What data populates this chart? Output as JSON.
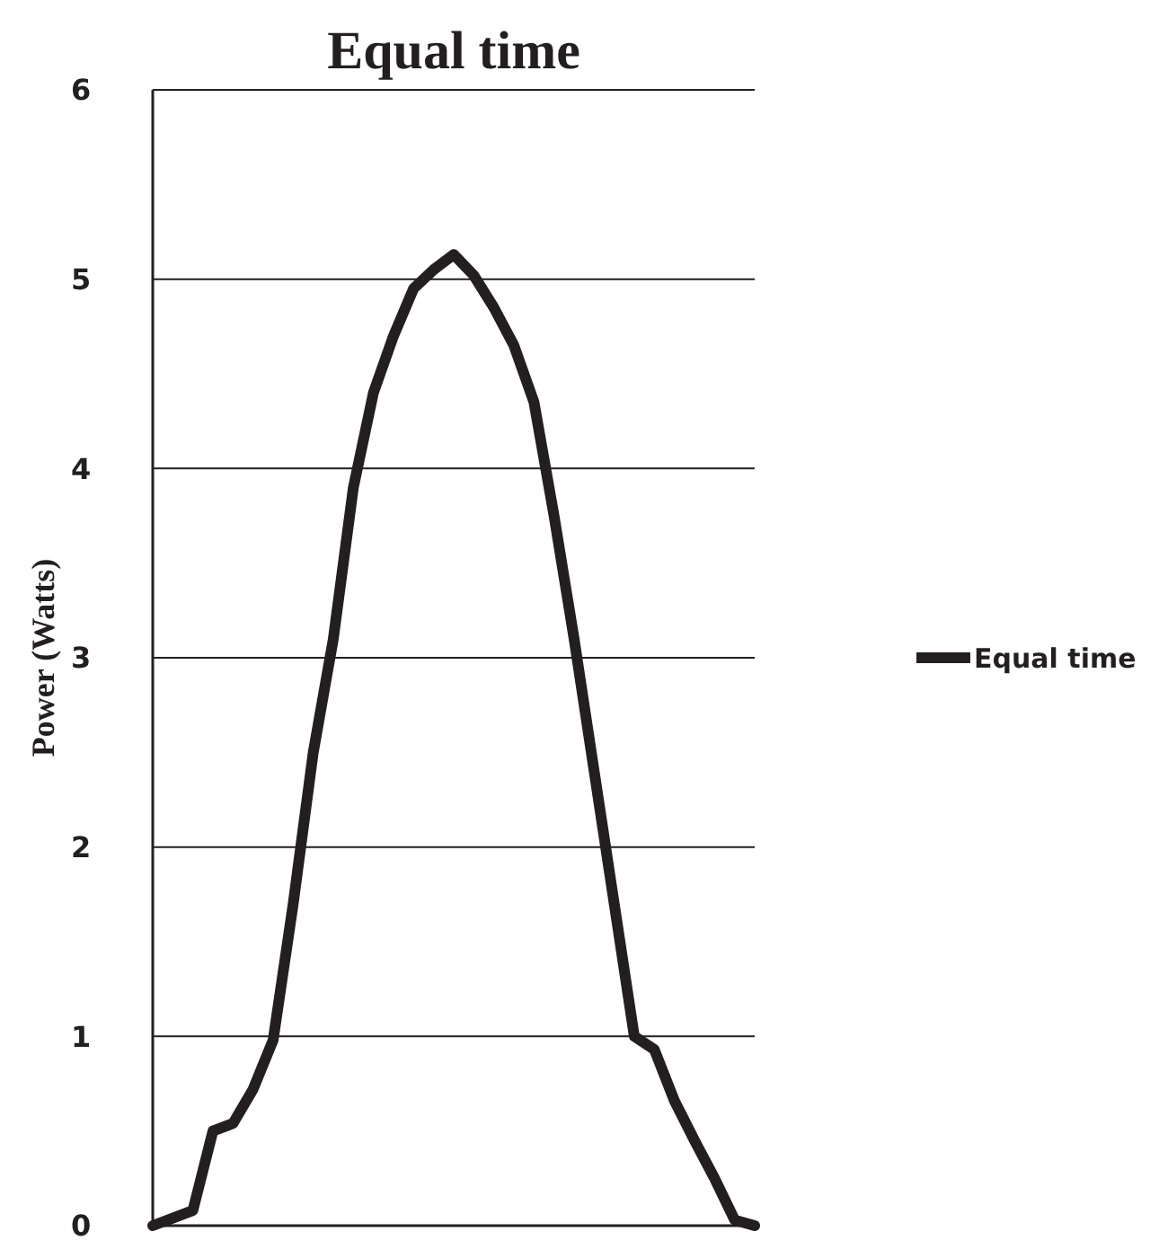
{
  "chart_data": {
    "type": "line",
    "title": "Equal time",
    "ylabel": "Power (Watts)",
    "categories": [
      null,
      null,
      null,
      null,
      null,
      null,
      null,
      null,
      null,
      null,
      null,
      null,
      null,
      null,
      null,
      null,
      null,
      null,
      null,
      null,
      null,
      null,
      null,
      null,
      null,
      null,
      null,
      null,
      null,
      null,
      null
    ],
    "series": [
      {
        "name": "Equal time",
        "color": "#231f20",
        "values": [
          0,
          0.04,
          0.08,
          0.5,
          0.54,
          0.72,
          0.98,
          1.7,
          2.5,
          3.1,
          3.9,
          4.4,
          4.7,
          4.95,
          5.05,
          5.13,
          5.02,
          4.85,
          4.65,
          4.35,
          3.75,
          3.1,
          2.4,
          1.7,
          1.0,
          0.93,
          0.66,
          0.45,
          0.25,
          0.03,
          0
        ]
      }
    ],
    "ylim": [
      0,
      6
    ],
    "yticks": [
      0,
      1,
      2,
      3,
      4,
      5,
      6
    ],
    "grid": "y",
    "legend": "right",
    "marker": "none",
    "line_style": "solid"
  }
}
